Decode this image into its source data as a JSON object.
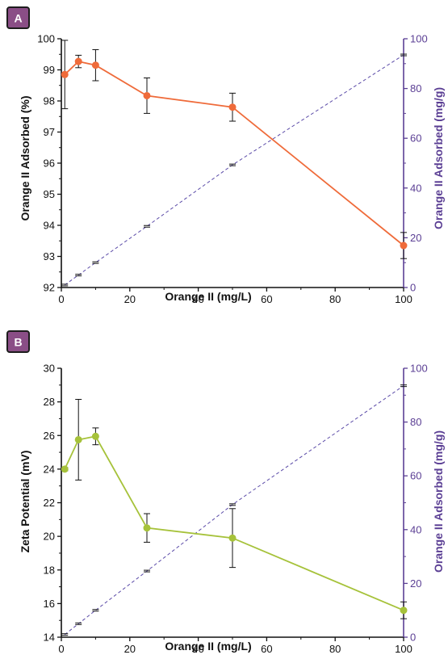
{
  "colors": {
    "panel_a_series": "#ef6b3a",
    "panel_b_series": "#a6c23a",
    "right_axis": "#5b3f94",
    "dashed_series": "#5b4ba8",
    "badge_fill": "#8a4e86",
    "badge_border": "#1d1d1d"
  },
  "chart_data": [
    {
      "panel": "A",
      "type": "line",
      "xlabel": "Orange II (mg/L)",
      "ylabel": "Orange II Adsorbed (%)",
      "y2label": "Orange II Adsorbed (mg/g)",
      "xlim": [
        0,
        100
      ],
      "ylim": [
        92,
        100
      ],
      "y2lim": [
        0,
        100
      ],
      "xticks": [
        "0",
        "20",
        "40",
        "60",
        "80",
        "100"
      ],
      "yticks": [
        "92",
        "93",
        "94",
        "95",
        "96",
        "97",
        "98",
        "99",
        "100"
      ],
      "y2ticks": [
        "0",
        "20",
        "40",
        "60",
        "80",
        "100"
      ],
      "series": [
        {
          "axis": "left",
          "style": "solid-markers",
          "x": [
            1,
            5,
            10,
            25,
            50,
            100
          ],
          "y": [
            98.85,
            99.27,
            99.15,
            98.17,
            97.8,
            93.35
          ],
          "err": [
            1.1,
            0.2,
            0.5,
            0.57,
            0.45,
            0.42
          ]
        },
        {
          "axis": "right",
          "style": "dashed-with-error-ticks",
          "x": [
            1,
            5,
            10,
            25,
            50,
            100
          ],
          "y": [
            1,
            5,
            10,
            24.6,
            49.3,
            93.5
          ]
        }
      ]
    },
    {
      "panel": "B",
      "type": "line",
      "xlabel": "Orange II (mg/L)",
      "ylabel": "Zeta Potential (mV)",
      "y2label": "Orange II Adsorbed (mg/g)",
      "xlim": [
        0,
        100
      ],
      "ylim": [
        14,
        30
      ],
      "y2lim": [
        0,
        100
      ],
      "xticks": [
        "0",
        "20",
        "40",
        "60",
        "80",
        "100"
      ],
      "yticks": [
        "14",
        "16",
        "18",
        "20",
        "22",
        "24",
        "26",
        "28",
        "30"
      ],
      "y2ticks": [
        "0",
        "20",
        "40",
        "60",
        "80",
        "100"
      ],
      "series": [
        {
          "axis": "left",
          "style": "solid-markers",
          "x": [
            1,
            5,
            10,
            25,
            50,
            100
          ],
          "y": [
            24.0,
            25.75,
            25.95,
            20.5,
            19.9,
            15.6
          ],
          "err": [
            0.1,
            2.4,
            0.5,
            0.85,
            1.75,
            0.5
          ]
        },
        {
          "axis": "right",
          "style": "dashed-with-error-ticks",
          "x": [
            1,
            5,
            10,
            25,
            50,
            100
          ],
          "y": [
            1,
            5,
            10,
            24.6,
            49.3,
            93.5
          ]
        }
      ]
    }
  ]
}
